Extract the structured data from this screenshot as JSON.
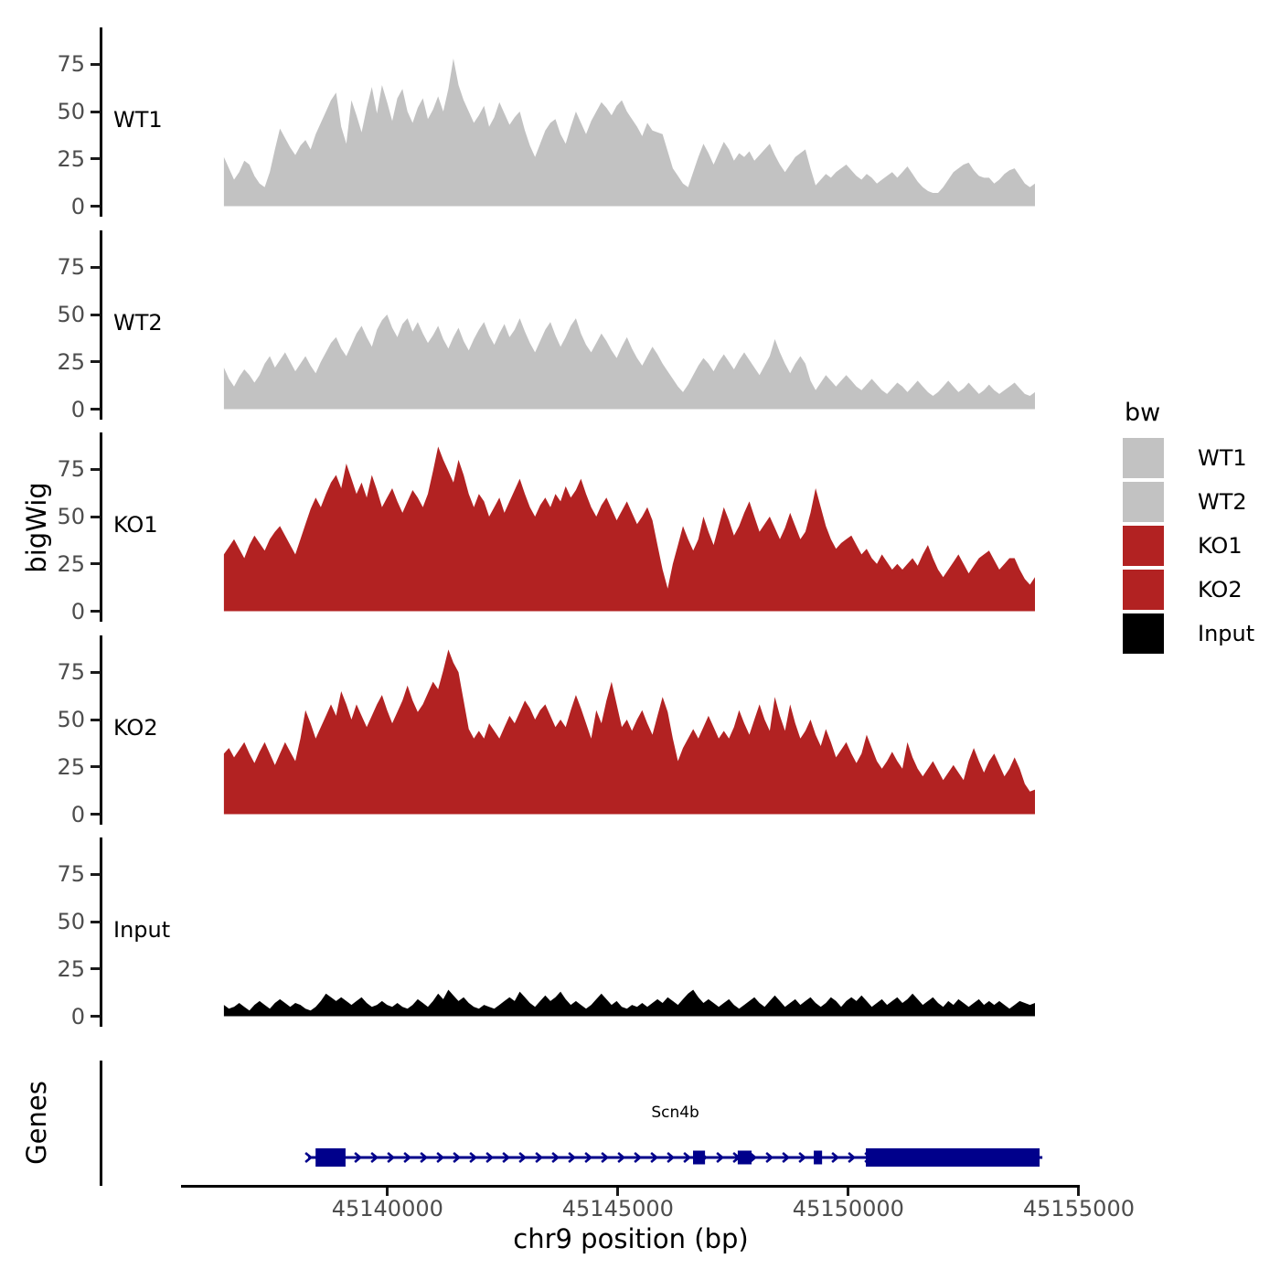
{
  "labels": {
    "y_axis_title": "bigWig",
    "genes_axis_title": "Genes",
    "x_axis_title": "chr9 position (bp)",
    "legend_title": "bw"
  },
  "colors": {
    "wt": "#C2C2C2",
    "ko": "#B22222",
    "input": "#000000",
    "gene": "#00008B",
    "axis_text": "#4d4d4d",
    "axis_line": "#000000"
  },
  "chart_data": {
    "type": "area",
    "subtype": "genome-coverage-tracks",
    "xlabel": "chr9 position (bp)",
    "ylabel": "bigWig",
    "x_domain": [
      45135560,
      45155200
    ],
    "x_ticks": [
      45140000,
      45145000,
      45150000,
      45155000
    ],
    "y_ticks": [
      0,
      25,
      50,
      75
    ],
    "ylim": [
      0,
      95
    ],
    "grid": false,
    "x_start": 45136450,
    "x_end": 45154050,
    "legend": {
      "title": "bw",
      "position": "right",
      "entries": [
        {
          "label": "WT1",
          "color": "#C2C2C2"
        },
        {
          "label": "WT2",
          "color": "#C2C2C2"
        },
        {
          "label": "KO1",
          "color": "#B22222"
        },
        {
          "label": "KO2",
          "color": "#B22222"
        },
        {
          "label": "Input",
          "color": "#000000"
        }
      ]
    },
    "tracks": [
      {
        "name": "WT1",
        "color": "#C2C2C2",
        "values": [
          26,
          20,
          14,
          18,
          24,
          22,
          16,
          12,
          10,
          18,
          30,
          41,
          36,
          31,
          27,
          32,
          35,
          30,
          38,
          44,
          50,
          56,
          60,
          42,
          33,
          56,
          48,
          39,
          52,
          63,
          49,
          64,
          55,
          45,
          57,
          62,
          50,
          44,
          52,
          57,
          46,
          51,
          58,
          50,
          62,
          78,
          64,
          56,
          50,
          44,
          48,
          53,
          42,
          47,
          55,
          49,
          43,
          47,
          50,
          40,
          32,
          26,
          33,
          40,
          44,
          46,
          38,
          33,
          42,
          50,
          44,
          38,
          45,
          50,
          55,
          52,
          48,
          53,
          56,
          50,
          46,
          42,
          37,
          44,
          40,
          39,
          38,
          29,
          20,
          16,
          12,
          10,
          18,
          26,
          33,
          28,
          22,
          28,
          34,
          30,
          24,
          28,
          26,
          29,
          24,
          27,
          30,
          33,
          27,
          22,
          18,
          22,
          26,
          28,
          30,
          20,
          11,
          14,
          17,
          15,
          18,
          20,
          22,
          19,
          16,
          14,
          17,
          15,
          12,
          14,
          16,
          18,
          15,
          18,
          21,
          17,
          13,
          10,
          8,
          7,
          7,
          10,
          14,
          18,
          20,
          22,
          23,
          19,
          16,
          15,
          15,
          12,
          14,
          17,
          19,
          20,
          16,
          12,
          10,
          12
        ]
      },
      {
        "name": "WT2",
        "color": "#C2C2C2",
        "values": [
          22,
          16,
          12,
          17,
          21,
          18,
          14,
          18,
          24,
          28,
          22,
          26,
          30,
          25,
          20,
          24,
          28,
          23,
          19,
          25,
          30,
          35,
          38,
          32,
          28,
          34,
          40,
          44,
          38,
          33,
          42,
          47,
          50,
          43,
          38,
          45,
          48,
          41,
          46,
          40,
          35,
          39,
          44,
          37,
          32,
          38,
          43,
          36,
          31,
          37,
          42,
          46,
          39,
          34,
          40,
          45,
          38,
          42,
          48,
          41,
          35,
          30,
          36,
          42,
          46,
          39,
          33,
          38,
          44,
          48,
          40,
          34,
          30,
          35,
          40,
          36,
          31,
          27,
          33,
          38,
          32,
          27,
          23,
          28,
          33,
          29,
          24,
          20,
          16,
          12,
          9,
          13,
          18,
          23,
          27,
          24,
          20,
          25,
          29,
          25,
          21,
          26,
          30,
          26,
          22,
          18,
          23,
          28,
          37,
          30,
          24,
          19,
          24,
          28,
          24,
          15,
          10,
          14,
          18,
          15,
          12,
          15,
          18,
          15,
          12,
          10,
          13,
          16,
          13,
          10,
          8,
          11,
          14,
          12,
          9,
          12,
          15,
          12,
          9,
          7,
          9,
          12,
          15,
          12,
          9,
          11,
          14,
          11,
          8,
          10,
          13,
          10,
          8,
          10,
          12,
          14,
          11,
          8,
          7,
          9
        ]
      },
      {
        "name": "KO1",
        "color": "#B22222",
        "values": [
          30,
          34,
          38,
          33,
          28,
          35,
          40,
          36,
          32,
          38,
          42,
          45,
          40,
          35,
          30,
          38,
          46,
          54,
          60,
          55,
          62,
          68,
          72,
          65,
          78,
          70,
          62,
          68,
          60,
          72,
          64,
          55,
          60,
          65,
          58,
          52,
          58,
          64,
          60,
          55,
          62,
          74,
          87,
          80,
          74,
          68,
          80,
          72,
          62,
          55,
          62,
          58,
          50,
          55,
          60,
          52,
          58,
          64,
          70,
          62,
          55,
          50,
          56,
          60,
          55,
          62,
          58,
          66,
          60,
          64,
          70,
          62,
          55,
          50,
          56,
          60,
          54,
          48,
          53,
          58,
          52,
          46,
          50,
          55,
          48,
          35,
          22,
          12,
          25,
          35,
          45,
          38,
          32,
          38,
          50,
          42,
          35,
          45,
          55,
          48,
          40,
          45,
          52,
          58,
          50,
          42,
          46,
          50,
          44,
          38,
          44,
          52,
          45,
          38,
          42,
          52,
          65,
          55,
          45,
          38,
          33,
          36,
          38,
          40,
          35,
          30,
          33,
          28,
          25,
          30,
          26,
          22,
          25,
          22,
          25,
          28,
          24,
          30,
          35,
          28,
          22,
          18,
          22,
          26,
          30,
          25,
          20,
          24,
          28,
          30,
          32,
          27,
          22,
          25,
          28,
          28,
          22,
          17,
          14,
          18
        ]
      },
      {
        "name": "KO2",
        "color": "#B22222",
        "values": [
          32,
          35,
          30,
          34,
          38,
          32,
          27,
          33,
          38,
          32,
          26,
          32,
          38,
          33,
          28,
          40,
          55,
          48,
          40,
          46,
          52,
          58,
          52,
          65,
          58,
          50,
          58,
          52,
          46,
          52,
          58,
          63,
          55,
          48,
          54,
          60,
          68,
          60,
          54,
          58,
          64,
          70,
          66,
          76,
          87,
          80,
          75,
          60,
          45,
          40,
          44,
          40,
          48,
          44,
          40,
          46,
          52,
          48,
          54,
          60,
          56,
          50,
          55,
          58,
          52,
          46,
          50,
          46,
          55,
          63,
          56,
          48,
          40,
          55,
          48,
          60,
          70,
          58,
          46,
          50,
          44,
          50,
          55,
          48,
          42,
          52,
          62,
          54,
          40,
          28,
          35,
          40,
          45,
          40,
          46,
          52,
          46,
          40,
          44,
          40,
          46,
          55,
          48,
          42,
          50,
          58,
          50,
          44,
          62,
          52,
          44,
          58,
          48,
          40,
          44,
          50,
          42,
          36,
          45,
          38,
          30,
          34,
          38,
          32,
          27,
          32,
          42,
          35,
          28,
          24,
          28,
          33,
          28,
          24,
          38,
          30,
          24,
          20,
          24,
          28,
          23,
          18,
          22,
          26,
          22,
          18,
          28,
          35,
          28,
          22,
          28,
          32,
          26,
          20,
          24,
          30,
          24,
          16,
          12,
          13
        ]
      },
      {
        "name": "Input",
        "color": "#000000",
        "values": [
          6,
          4,
          5,
          7,
          5,
          3,
          6,
          8,
          6,
          4,
          7,
          9,
          7,
          5,
          7,
          6,
          4,
          3,
          5,
          8,
          12,
          10,
          8,
          10,
          8,
          6,
          8,
          10,
          7,
          5,
          6,
          8,
          6,
          5,
          7,
          5,
          4,
          6,
          9,
          7,
          5,
          8,
          12,
          9,
          14,
          11,
          8,
          10,
          7,
          5,
          4,
          6,
          5,
          4,
          6,
          8,
          10,
          8,
          13,
          10,
          7,
          5,
          8,
          11,
          8,
          10,
          13,
          9,
          6,
          8,
          6,
          4,
          6,
          9,
          12,
          9,
          6,
          8,
          5,
          4,
          6,
          5,
          7,
          5,
          7,
          9,
          7,
          10,
          8,
          6,
          9,
          12,
          14,
          10,
          7,
          9,
          7,
          5,
          7,
          9,
          6,
          4,
          6,
          8,
          10,
          7,
          5,
          8,
          11,
          8,
          5,
          7,
          9,
          6,
          8,
          10,
          7,
          5,
          7,
          10,
          8,
          5,
          8,
          10,
          8,
          11,
          8,
          5,
          7,
          9,
          6,
          8,
          10,
          7,
          9,
          12,
          9,
          6,
          8,
          10,
          7,
          5,
          8,
          6,
          9,
          7,
          5,
          7,
          9,
          6,
          8,
          6,
          8,
          6,
          4,
          6,
          8,
          7,
          6,
          7
        ]
      }
    ],
    "genes_track": {
      "axis_label": "Genes",
      "gene": {
        "name": "Scn4b",
        "strand": "+",
        "chrom": "chr9",
        "start": 45138280,
        "end": 45154210,
        "color": "#00008B",
        "exons": [
          {
            "start": 45138440,
            "end": 45139090,
            "size": "tall"
          },
          {
            "start": 45146630,
            "end": 45146890,
            "size": "small"
          },
          {
            "start": 45147600,
            "end": 45147900,
            "size": "small"
          },
          {
            "start": 45149250,
            "end": 45149430,
            "size": "small"
          },
          {
            "start": 45150380,
            "end": 45154150,
            "size": "tall"
          }
        ]
      }
    }
  }
}
